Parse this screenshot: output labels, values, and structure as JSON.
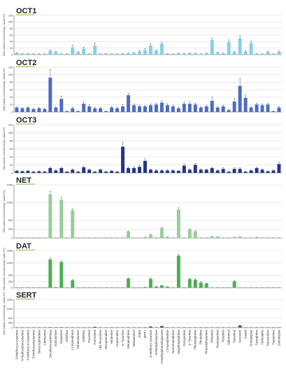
{
  "chart_data": {
    "type": "bar",
    "categories": [
      "3-Methoxy-p-tyramine",
      "4-Hydroxybenzylamine",
      "4-Methoxy-m-tyramine",
      "5-Methoxytryptamine",
      "Benzoxyphedrine",
      "Clenbuterol",
      "Decarboxycarbidopa",
      "Dobutamine",
      "Dopamine",
      "Etilefrine",
      "(-)-Epinephrine",
      "Ethanolamine",
      "Etilefrine",
      "Fenoterol",
      "Formoterol",
      "(R)-Fluoxetine",
      "Hexoprenaline",
      "Hordenine",
      "Isoprenaline",
      "m-Tyramine",
      "Metanephrine",
      "Metaraminol",
      "mIBG",
      "MPP+",
      "N-Methyl-p-tyramine",
      "N-Methylhistamine",
      "N-Methylphenethylamine",
      "(-)-Norephedrine",
      "Normetanephrine",
      "Norphenylephrine",
      "Octopamine",
      "p-Tyramine",
      "Phenylephrine",
      "Pholedrine",
      "Phenylethylamine",
      "Pirbuterol",
      "Ractopamine",
      "Ritodrine",
      "Salbutamol",
      "Salsolinol",
      "Serotonin",
      "Sotalol",
      "Sumatriptan",
      "Synephrine",
      "Terbutaline",
      "Tramazoline",
      "Tryptamine",
      "Zolmitriptan"
    ],
    "ylabel": "Ratio\n[uptake overexpressing] / uptake EV]",
    "series": [
      {
        "name": "OCT1",
        "color": "#87CEEB",
        "ylim": [
          0,
          120
        ],
        "ticks": [
          0,
          20,
          40,
          60,
          80,
          100,
          120
        ],
        "values": [
          5,
          3,
          3,
          2,
          2,
          2,
          12,
          8,
          2,
          2,
          22,
          8,
          18,
          2,
          28,
          2,
          3,
          2,
          2,
          3,
          4,
          5,
          10,
          14,
          28,
          12,
          32,
          3,
          2,
          4,
          3,
          4,
          4,
          2,
          4,
          45,
          6,
          4,
          38,
          8,
          50,
          10,
          35,
          3,
          2,
          8,
          2,
          9
        ],
        "errors": [
          1,
          1,
          1,
          1,
          1,
          1,
          3,
          2,
          1,
          1,
          7,
          2,
          5,
          1,
          8,
          1,
          1,
          1,
          1,
          1,
          1,
          2,
          3,
          4,
          6,
          3,
          6,
          1,
          1,
          1,
          1,
          1,
          1,
          1,
          1,
          5,
          2,
          1,
          7,
          2,
          9,
          3,
          6,
          1,
          1,
          2,
          1,
          2
        ]
      },
      {
        "name": "OCT2",
        "color": "#4C6BC4",
        "ylim": [
          0,
          120
        ],
        "ticks": [
          0,
          20,
          40,
          60,
          80,
          100,
          120
        ],
        "values": [
          12,
          10,
          12,
          8,
          10,
          8,
          92,
          12,
          35,
          2,
          10,
          2,
          22,
          15,
          10,
          10,
          2,
          12,
          10,
          15,
          45,
          18,
          15,
          15,
          18,
          20,
          25,
          18,
          15,
          10,
          22,
          22,
          20,
          12,
          15,
          30,
          12,
          15,
          5,
          28,
          70,
          38,
          12,
          20,
          18,
          20,
          2,
          12
        ],
        "errors": [
          2,
          2,
          2,
          2,
          2,
          2,
          22,
          3,
          8,
          1,
          3,
          1,
          5,
          4,
          3,
          3,
          1,
          3,
          3,
          4,
          5,
          4,
          3,
          3,
          4,
          4,
          5,
          4,
          3,
          3,
          5,
          5,
          4,
          3,
          3,
          10,
          3,
          3,
          2,
          8,
          20,
          8,
          3,
          4,
          4,
          4,
          1,
          3
        ]
      },
      {
        "name": "OCT3",
        "color": "#243584",
        "ylim": [
          0,
          120
        ],
        "ticks": [
          0,
          20,
          40,
          60,
          80,
          100,
          120
        ],
        "values": [
          5,
          4,
          5,
          3,
          4,
          3,
          12,
          6,
          12,
          3,
          8,
          3,
          14,
          8,
          3,
          8,
          3,
          5,
          3,
          65,
          12,
          12,
          15,
          30,
          8,
          6,
          6,
          6,
          6,
          5,
          18,
          8,
          20,
          8,
          8,
          12,
          6,
          10,
          3,
          10,
          10,
          3,
          6,
          12,
          8,
          4,
          6,
          22
        ],
        "errors": [
          1,
          1,
          1,
          1,
          1,
          1,
          3,
          2,
          3,
          1,
          2,
          1,
          3,
          2,
          1,
          2,
          1,
          1,
          1,
          12,
          3,
          3,
          3,
          5,
          2,
          2,
          2,
          2,
          2,
          1,
          4,
          2,
          4,
          2,
          2,
          3,
          2,
          3,
          1,
          3,
          3,
          1,
          2,
          3,
          2,
          1,
          2,
          5
        ]
      },
      {
        "name": "NET",
        "color": "#99CC99",
        "ylim": [
          0,
          1500
        ],
        "ticks": [
          0,
          250,
          500,
          1000,
          1500
        ],
        "values": [
          3,
          2,
          3,
          2,
          3,
          2,
          1230,
          2,
          1080,
          2,
          780,
          2,
          2,
          2,
          2,
          2,
          2,
          2,
          2,
          2,
          185,
          2,
          2,
          20,
          95,
          10,
          280,
          30,
          2,
          800,
          2,
          240,
          190,
          2,
          2,
          40,
          35,
          2,
          2,
          20,
          35,
          2,
          2,
          20,
          2,
          2,
          2,
          2
        ],
        "errors": [
          1,
          1,
          1,
          1,
          1,
          1,
          90,
          1,
          70,
          1,
          40,
          1,
          1,
          1,
          1,
          1,
          1,
          1,
          1,
          1,
          12,
          1,
          1,
          3,
          8,
          2,
          20,
          3,
          1,
          50,
          1,
          20,
          15,
          1,
          1,
          4,
          4,
          1,
          1,
          3,
          4,
          1,
          1,
          3,
          1,
          1,
          1,
          1
        ]
      },
      {
        "name": "DAT",
        "color": "#4CAF50",
        "ylim": [
          0,
          1500
        ],
        "ticks": [
          0,
          250,
          500,
          1000,
          1500
        ],
        "values": [
          2,
          2,
          2,
          2,
          2,
          2,
          1140,
          18,
          1040,
          2,
          300,
          2,
          2,
          2,
          2,
          2,
          2,
          2,
          2,
          2,
          370,
          2,
          2,
          22,
          360,
          40,
          90,
          38,
          2,
          1300,
          2,
          350,
          320,
          210,
          170,
          2,
          8,
          2,
          2,
          260,
          2,
          2,
          5,
          2,
          2,
          2,
          2,
          2
        ],
        "errors": [
          1,
          1,
          1,
          1,
          1,
          1,
          70,
          3,
          60,
          1,
          30,
          1,
          1,
          1,
          1,
          1,
          1,
          1,
          1,
          1,
          30,
          1,
          1,
          4,
          40,
          6,
          15,
          6,
          1,
          60,
          1,
          40,
          40,
          25,
          20,
          1,
          2,
          1,
          1,
          30,
          1,
          1,
          1,
          1,
          1,
          1,
          1,
          1
        ]
      },
      {
        "name": "SERT",
        "color": "#1F7A34",
        "ylim": [
          0,
          1500
        ],
        "ticks": [
          0,
          250,
          500,
          1000,
          1500
        ],
        "values": [
          2,
          2,
          2,
          2,
          2,
          2,
          15,
          8,
          15,
          2,
          5,
          2,
          2,
          2,
          35,
          2,
          2,
          2,
          2,
          2,
          3,
          2,
          2,
          5,
          55,
          10,
          80,
          2,
          2,
          3,
          2,
          2,
          2,
          2,
          2,
          3,
          2,
          2,
          2,
          3,
          110,
          3,
          2,
          2,
          2,
          2,
          2,
          3
        ],
        "errors": [
          1,
          1,
          1,
          1,
          1,
          1,
          2,
          2,
          2,
          1,
          1,
          1,
          1,
          1,
          4,
          1,
          1,
          1,
          1,
          1,
          1,
          1,
          1,
          1,
          6,
          2,
          12,
          1,
          1,
          1,
          1,
          1,
          1,
          1,
          1,
          1,
          1,
          1,
          1,
          1,
          20,
          1,
          1,
          1,
          1,
          1,
          1,
          1
        ]
      }
    ]
  }
}
